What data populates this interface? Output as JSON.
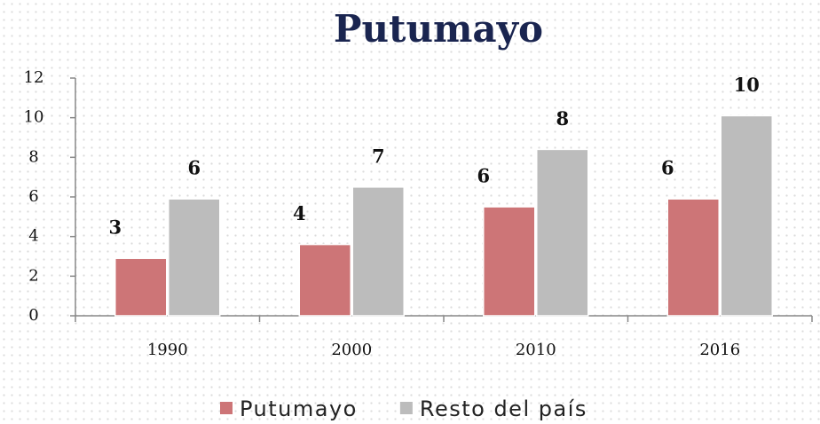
{
  "chart_data": {
    "type": "bar",
    "title": "Putumayo",
    "categories": [
      "1990",
      "2000",
      "2010",
      "2016"
    ],
    "series": [
      {
        "name": "Putumayo",
        "color": "#cd7577",
        "values": [
          2.9,
          3.6,
          5.5,
          5.9
        ],
        "value_labels": [
          "3",
          "4",
          "6",
          "6"
        ]
      },
      {
        "name": "Resto del país",
        "color": "#bcbcbc",
        "values": [
          5.9,
          6.5,
          8.4,
          10.1
        ],
        "value_labels": [
          "6",
          "7",
          "8",
          "10"
        ]
      }
    ],
    "ylim": [
      0,
      12
    ],
    "yticks": [
      0,
      2,
      4,
      6,
      8,
      10,
      12
    ],
    "legend": "bottom"
  }
}
